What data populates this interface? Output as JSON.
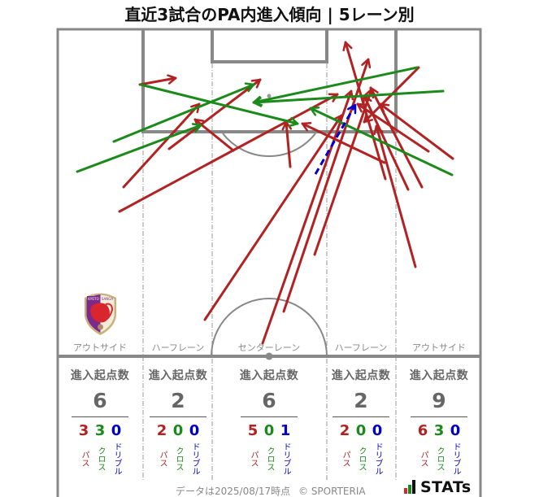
{
  "title": "直近3試合のPA内進入傾向 | 5レーン別",
  "stats_heading": "進入起点数",
  "type_labels": {
    "pass": "パス",
    "cross": "クロス",
    "dribble": "ドリブル"
  },
  "colors": {
    "pass": "#b22222",
    "cross": "#1a8a1a",
    "dribble": "#0000cd",
    "pitch_line": "#888888",
    "lane_divider": "#999999",
    "stat_text": "#666666"
  },
  "lanes": [
    {
      "label": "アウトサイド",
      "total": "6",
      "pass": "3",
      "cross": "3",
      "dribble": "0"
    },
    {
      "label": "ハーフレーン",
      "total": "2",
      "pass": "2",
      "cross": "0",
      "dribble": "0"
    },
    {
      "label": "センターレーン",
      "total": "6",
      "pass": "5",
      "cross": "0",
      "dribble": "1"
    },
    {
      "label": "ハーフレーン",
      "total": "2",
      "pass": "2",
      "cross": "0",
      "dribble": "0"
    },
    {
      "label": "アウトサイド",
      "total": "9",
      "pass": "6",
      "cross": "3",
      "dribble": "0"
    }
  ],
  "team_logo": {
    "text_left": "KYOTO",
    "text_right": "SANGA"
  },
  "footer": {
    "data_date": "データは2025/08/17時点",
    "copyright": "© SPORTERIA",
    "brand": "STATs"
  },
  "chart_data": [
    {
      "type": "table",
      "title": "直近3試合のPA内進入傾向 | 5レーン別",
      "categories": [
        "アウトサイド",
        "ハーフレーン",
        "センターレーン",
        "ハーフレーン",
        "アウトサイド"
      ],
      "series": [
        {
          "name": "進入起点数",
          "values": [
            6,
            2,
            6,
            2,
            9
          ]
        },
        {
          "name": "パス",
          "values": [
            3,
            2,
            5,
            2,
            6
          ]
        },
        {
          "name": "クロス",
          "values": [
            3,
            0,
            0,
            0,
            3
          ]
        },
        {
          "name": "ドリブル",
          "values": [
            0,
            0,
            1,
            0,
            0
          ]
        }
      ]
    },
    {
      "type": "line",
      "title": "PA進入矢印 (始点→終点)",
      "xlabel": "",
      "ylabel": "",
      "series": [
        {
          "key": "pass",
          "name": "パス",
          "color": "#b22222",
          "dashed": false,
          "segments": [
            [
              172,
              104,
              216,
              96
            ],
            [
              152,
              230,
              245,
              128
            ],
            [
              147,
              260,
              415,
              116
            ],
            [
              208,
              183,
              320,
              98
            ],
            [
              252,
              393,
              420,
              142
            ],
            [
              287,
              185,
              240,
              147
            ],
            [
              357,
              205,
              352,
              150
            ],
            [
              323,
              422,
              432,
              112
            ],
            [
              349,
              383,
              453,
              73
            ],
            [
              387,
              313,
              457,
              110
            ],
            [
              473,
              200,
              372,
              152
            ],
            [
              474,
              220,
              425,
              52
            ],
            [
              515,
              83,
              448,
              150
            ],
            [
              527,
              186,
              440,
              128
            ],
            [
              557,
              195,
              468,
              128
            ],
            [
              502,
              233,
              448,
              118
            ],
            [
              519,
              230,
              456,
              108
            ],
            [
              511,
              328,
              463,
              155
            ]
          ]
        },
        {
          "key": "cross",
          "name": "クロス",
          "color": "#1a8a1a",
          "dashed": false,
          "segments": [
            [
              173,
              104,
              366,
              152
            ],
            [
              140,
              174,
              312,
              104
            ],
            [
              95,
              211,
              247,
              154
            ],
            [
              513,
              83,
              312,
              126
            ],
            [
              545,
              112,
              312,
              126
            ],
            [
              556,
              215,
              382,
              133
            ]
          ]
        },
        {
          "key": "dribble",
          "name": "ドリブル",
          "color": "#0000cd",
          "dashed": true,
          "segments": [
            [
              388,
              214,
              437,
              129
            ]
          ]
        }
      ]
    }
  ]
}
